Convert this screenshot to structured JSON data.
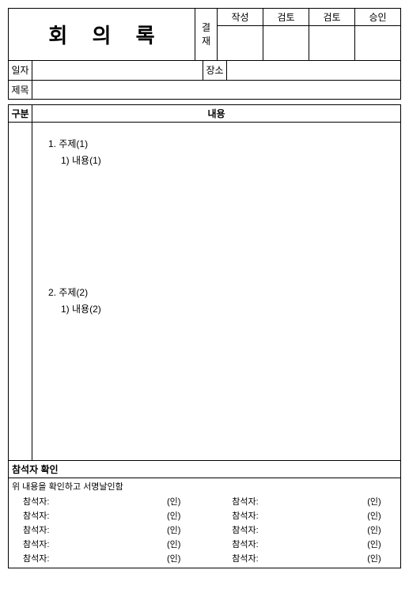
{
  "header": {
    "title": "회 의 록",
    "approval_label": "결재",
    "columns": [
      "작성",
      "검토",
      "검토",
      "승인"
    ]
  },
  "info": {
    "date_label": "일자",
    "date_value": "",
    "place_label": "장소",
    "place_value": "",
    "subject_label": "제목",
    "subject_value": ""
  },
  "section": {
    "gubun": "구분",
    "content": "내용"
  },
  "body": {
    "topic1": "1. 주제(1)",
    "topic1_sub": "1) 내용(1)",
    "topic2": "2. 주제(2)",
    "topic2_sub": "1) 내용(2)"
  },
  "confirm": {
    "title": "참석자 확인",
    "note": "위 내용을 확인하고 서명날인함",
    "label": "참석자:",
    "seal": "(인)",
    "rows": 5
  }
}
